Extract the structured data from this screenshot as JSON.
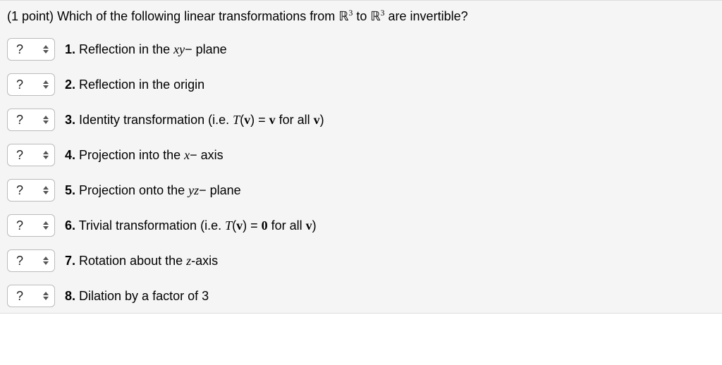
{
  "points_label": "(1 point)",
  "question_prefix": "Which of the following linear transformations from",
  "question_mid": "to",
  "question_suffix": "are invertible?",
  "space_symbol": "ℝ",
  "space_exponent": "3",
  "dropdown_placeholder": "?",
  "colors": {
    "container_bg": "#f5f5f5",
    "border": "#dddddd",
    "dropdown_border": "#bbbbbb",
    "dropdown_bg": "#ffffff",
    "text": "#000000"
  },
  "items": [
    {
      "num": "1.",
      "pre": "Reflection in the ",
      "mi": "xy",
      "post": "− plane"
    },
    {
      "num": "2.",
      "pre": "Reflection in the origin",
      "mi": "",
      "post": ""
    },
    {
      "num": "3.",
      "pre": "Identity transformation (i.e. ",
      "math_html": "<span class=\"mathit\">T</span>(<span class=\"mathbf\">v</span>) = <span class=\"mathbf\">v</span>",
      "post": " for all ",
      "post_math": "<span class=\"mathbf\">v</span>",
      "post2": ")"
    },
    {
      "num": "4.",
      "pre": "Projection into the ",
      "mi": "x",
      "post": "− axis"
    },
    {
      "num": "5.",
      "pre": "Projection onto the ",
      "mi": "yz",
      "post": "− plane"
    },
    {
      "num": "6.",
      "pre": "Trivial transformation (i.e. ",
      "math_html": "<span class=\"mathit\">T</span>(<span class=\"mathbf\">v</span>) = <span class=\"mathbf\">0</span>",
      "post": " for all ",
      "post_math": "<span class=\"mathbf\">v</span>",
      "post2": ")"
    },
    {
      "num": "7.",
      "pre": "Rotation about the ",
      "mi": "z",
      "post": "-axis"
    },
    {
      "num": "8.",
      "pre": "Dilation by a factor of 3",
      "mi": "",
      "post": ""
    }
  ]
}
